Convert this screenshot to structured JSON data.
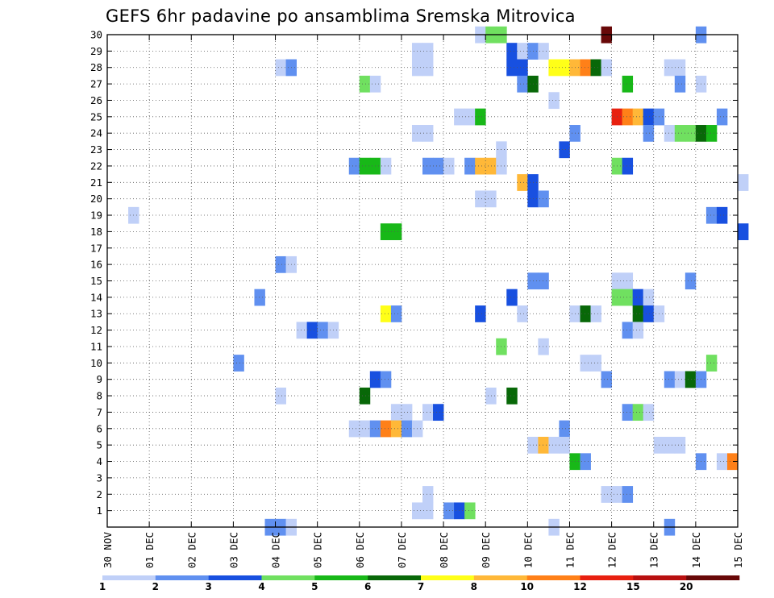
{
  "chart_data": {
    "type": "heatmap",
    "title": "GEFS 6hr padavine po ansamblima Sremska Mitrovica",
    "x_tick_labels": [
      "30 NOV",
      "01 DEC",
      "02 DEC",
      "03 DEC",
      "04 DEC",
      "05 DEC",
      "06 DEC",
      "07 DEC",
      "08 DEC",
      "09 DEC",
      "10 DEC",
      "11 DEC",
      "12 DEC",
      "13 DEC",
      "14 DEC",
      "15 DEC"
    ],
    "y_tick_labels": [
      "1",
      "2",
      "3",
      "4",
      "5",
      "6",
      "7",
      "8",
      "9",
      "10",
      "11",
      "12",
      "13",
      "14",
      "15",
      "16",
      "17",
      "18",
      "19",
      "20",
      "21",
      "22",
      "23",
      "24",
      "25",
      "26",
      "27",
      "28",
      "29",
      "30"
    ],
    "x_range_days": [
      0,
      15
    ],
    "y_range_members": [
      0,
      30
    ],
    "grid": true,
    "colorbar": {
      "labels": [
        "1",
        "2",
        "3",
        "4",
        "5",
        "6",
        "7",
        "8",
        "10",
        "12",
        "15",
        "20"
      ],
      "colors": [
        "#c0d0f8",
        "#6090f0",
        "#1850e0",
        "#70e060",
        "#18b818",
        "#086808",
        "#ffff18",
        "#ffb838",
        "#ff8018",
        "#e82010",
        "#b81010",
        "#680808"
      ]
    },
    "cells": [
      [
        30,
        8.75,
        0
      ],
      [
        30,
        9,
        3
      ],
      [
        30,
        9.25,
        3
      ],
      [
        30,
        11.75,
        11
      ],
      [
        30,
        14,
        1
      ],
      [
        29,
        7.25,
        0
      ],
      [
        29,
        7.5,
        0
      ],
      [
        29,
        9.5,
        2
      ],
      [
        29,
        9.75,
        0
      ],
      [
        29,
        10,
        1
      ],
      [
        29,
        10.25,
        0
      ],
      [
        28,
        4,
        0
      ],
      [
        28,
        4.25,
        1
      ],
      [
        28,
        7.25,
        0
      ],
      [
        28,
        7.5,
        0
      ],
      [
        28,
        9.5,
        2
      ],
      [
        28,
        9.75,
        2
      ],
      [
        28,
        10.5,
        6
      ],
      [
        28,
        10.75,
        6
      ],
      [
        28,
        11,
        7
      ],
      [
        28,
        11.25,
        8
      ],
      [
        28,
        11.5,
        5
      ],
      [
        28,
        11.75,
        0
      ],
      [
        28,
        13.25,
        0
      ],
      [
        28,
        13.5,
        0
      ],
      [
        27,
        6,
        3
      ],
      [
        27,
        6.25,
        0
      ],
      [
        27,
        9.75,
        1
      ],
      [
        27,
        10,
        5
      ],
      [
        27,
        12.25,
        4
      ],
      [
        27,
        13.5,
        1
      ],
      [
        27,
        14,
        0
      ],
      [
        26,
        10.5,
        0
      ],
      [
        25,
        8.25,
        0
      ],
      [
        25,
        8.5,
        0
      ],
      [
        25,
        8.75,
        4
      ],
      [
        25,
        12,
        9
      ],
      [
        25,
        12.25,
        8
      ],
      [
        25,
        12.5,
        7
      ],
      [
        25,
        12.75,
        2
      ],
      [
        25,
        13,
        1
      ],
      [
        25,
        14.5,
        1
      ],
      [
        24,
        7.25,
        0
      ],
      [
        24,
        7.5,
        0
      ],
      [
        24,
        11,
        1
      ],
      [
        24,
        12.75,
        1
      ],
      [
        24,
        13.25,
        0
      ],
      [
        24,
        13.5,
        3
      ],
      [
        24,
        13.75,
        3
      ],
      [
        24,
        14,
        5
      ],
      [
        24,
        14.25,
        4
      ],
      [
        23,
        9.25,
        0
      ],
      [
        23,
        10.75,
        2
      ],
      [
        22,
        5.75,
        1
      ],
      [
        22,
        6,
        4
      ],
      [
        22,
        6.25,
        4
      ],
      [
        22,
        6.5,
        0
      ],
      [
        22,
        7.5,
        1
      ],
      [
        22,
        7.75,
        1
      ],
      [
        22,
        8,
        0
      ],
      [
        22,
        8.5,
        1
      ],
      [
        22,
        8.75,
        7
      ],
      [
        22,
        9,
        7
      ],
      [
        22,
        9.25,
        0
      ],
      [
        22,
        12,
        3
      ],
      [
        22,
        12.25,
        2
      ],
      [
        21,
        9.75,
        7
      ],
      [
        21,
        10,
        2
      ],
      [
        21,
        15,
        0
      ],
      [
        20,
        8.75,
        0
      ],
      [
        20,
        9,
        0
      ],
      [
        20,
        10,
        2
      ],
      [
        20,
        10.25,
        1
      ],
      [
        19,
        0.5,
        0
      ],
      [
        19,
        14.25,
        1
      ],
      [
        19,
        14.5,
        2
      ],
      [
        18,
        6.5,
        4
      ],
      [
        18,
        6.75,
        4
      ],
      [
        18,
        15,
        2
      ],
      [
        16,
        4,
        1
      ],
      [
        16,
        4.25,
        0
      ],
      [
        15,
        10,
        1
      ],
      [
        15,
        10.25,
        1
      ],
      [
        15,
        12,
        0
      ],
      [
        15,
        12.25,
        0
      ],
      [
        15,
        13.75,
        1
      ],
      [
        14,
        3.5,
        1
      ],
      [
        14,
        9.5,
        2
      ],
      [
        14,
        12,
        3
      ],
      [
        14,
        12.25,
        3
      ],
      [
        14,
        12.5,
        2
      ],
      [
        14,
        12.75,
        0
      ],
      [
        13,
        6.5,
        6
      ],
      [
        13,
        6.75,
        1
      ],
      [
        13,
        8.75,
        2
      ],
      [
        13,
        9.75,
        0
      ],
      [
        13,
        11,
        0
      ],
      [
        13,
        11.25,
        5
      ],
      [
        13,
        11.5,
        0
      ],
      [
        13,
        12.5,
        5
      ],
      [
        13,
        12.75,
        2
      ],
      [
        13,
        13,
        0
      ],
      [
        12,
        4.5,
        0
      ],
      [
        12,
        4.75,
        2
      ],
      [
        12,
        5,
        1
      ],
      [
        12,
        5.25,
        0
      ],
      [
        12,
        12.25,
        1
      ],
      [
        12,
        12.5,
        0
      ],
      [
        11,
        9.25,
        3
      ],
      [
        11,
        10.25,
        0
      ],
      [
        10,
        3,
        1
      ],
      [
        10,
        11.25,
        0
      ],
      [
        10,
        11.5,
        0
      ],
      [
        10,
        14.25,
        3
      ],
      [
        9,
        6.25,
        2
      ],
      [
        9,
        6.5,
        1
      ],
      [
        9,
        11.75,
        1
      ],
      [
        9,
        13.25,
        1
      ],
      [
        9,
        13.5,
        0
      ],
      [
        9,
        13.75,
        5
      ],
      [
        9,
        14,
        1
      ],
      [
        8,
        4,
        0
      ],
      [
        8,
        6,
        5
      ],
      [
        8,
        9,
        0
      ],
      [
        8,
        9.5,
        5
      ],
      [
        7,
        6.75,
        0
      ],
      [
        7,
        7,
        0
      ],
      [
        7,
        7.5,
        0
      ],
      [
        7,
        7.75,
        2
      ],
      [
        7,
        12.25,
        1
      ],
      [
        7,
        12.5,
        3
      ],
      [
        7,
        12.75,
        0
      ],
      [
        6,
        5.75,
        0
      ],
      [
        6,
        6,
        0
      ],
      [
        6,
        6.25,
        1
      ],
      [
        6,
        6.5,
        8
      ],
      [
        6,
        6.75,
        7
      ],
      [
        6,
        7,
        1
      ],
      [
        6,
        7.25,
        0
      ],
      [
        6,
        10.75,
        1
      ],
      [
        5,
        10,
        0
      ],
      [
        5,
        10.25,
        7
      ],
      [
        5,
        10.5,
        0
      ],
      [
        5,
        10.75,
        0
      ],
      [
        5,
        13,
        0
      ],
      [
        5,
        13.25,
        0
      ],
      [
        5,
        13.5,
        0
      ],
      [
        4,
        11,
        4
      ],
      [
        4,
        11.25,
        1
      ],
      [
        4,
        14,
        1
      ],
      [
        4,
        14.5,
        0
      ],
      [
        4,
        14.75,
        8
      ],
      [
        2,
        7.5,
        0
      ],
      [
        2,
        11.75,
        0
      ],
      [
        2,
        12,
        0
      ],
      [
        2,
        12.25,
        1
      ],
      [
        1,
        7.25,
        0
      ],
      [
        1,
        7.5,
        0
      ],
      [
        1,
        8,
        1
      ],
      [
        1,
        8.25,
        2
      ],
      [
        1,
        8.5,
        3
      ],
      [
        0,
        3.75,
        1
      ],
      [
        0,
        4,
        1
      ],
      [
        0,
        4.25,
        0
      ],
      [
        0,
        10.5,
        0
      ],
      [
        0,
        13.25,
        1
      ]
    ]
  }
}
